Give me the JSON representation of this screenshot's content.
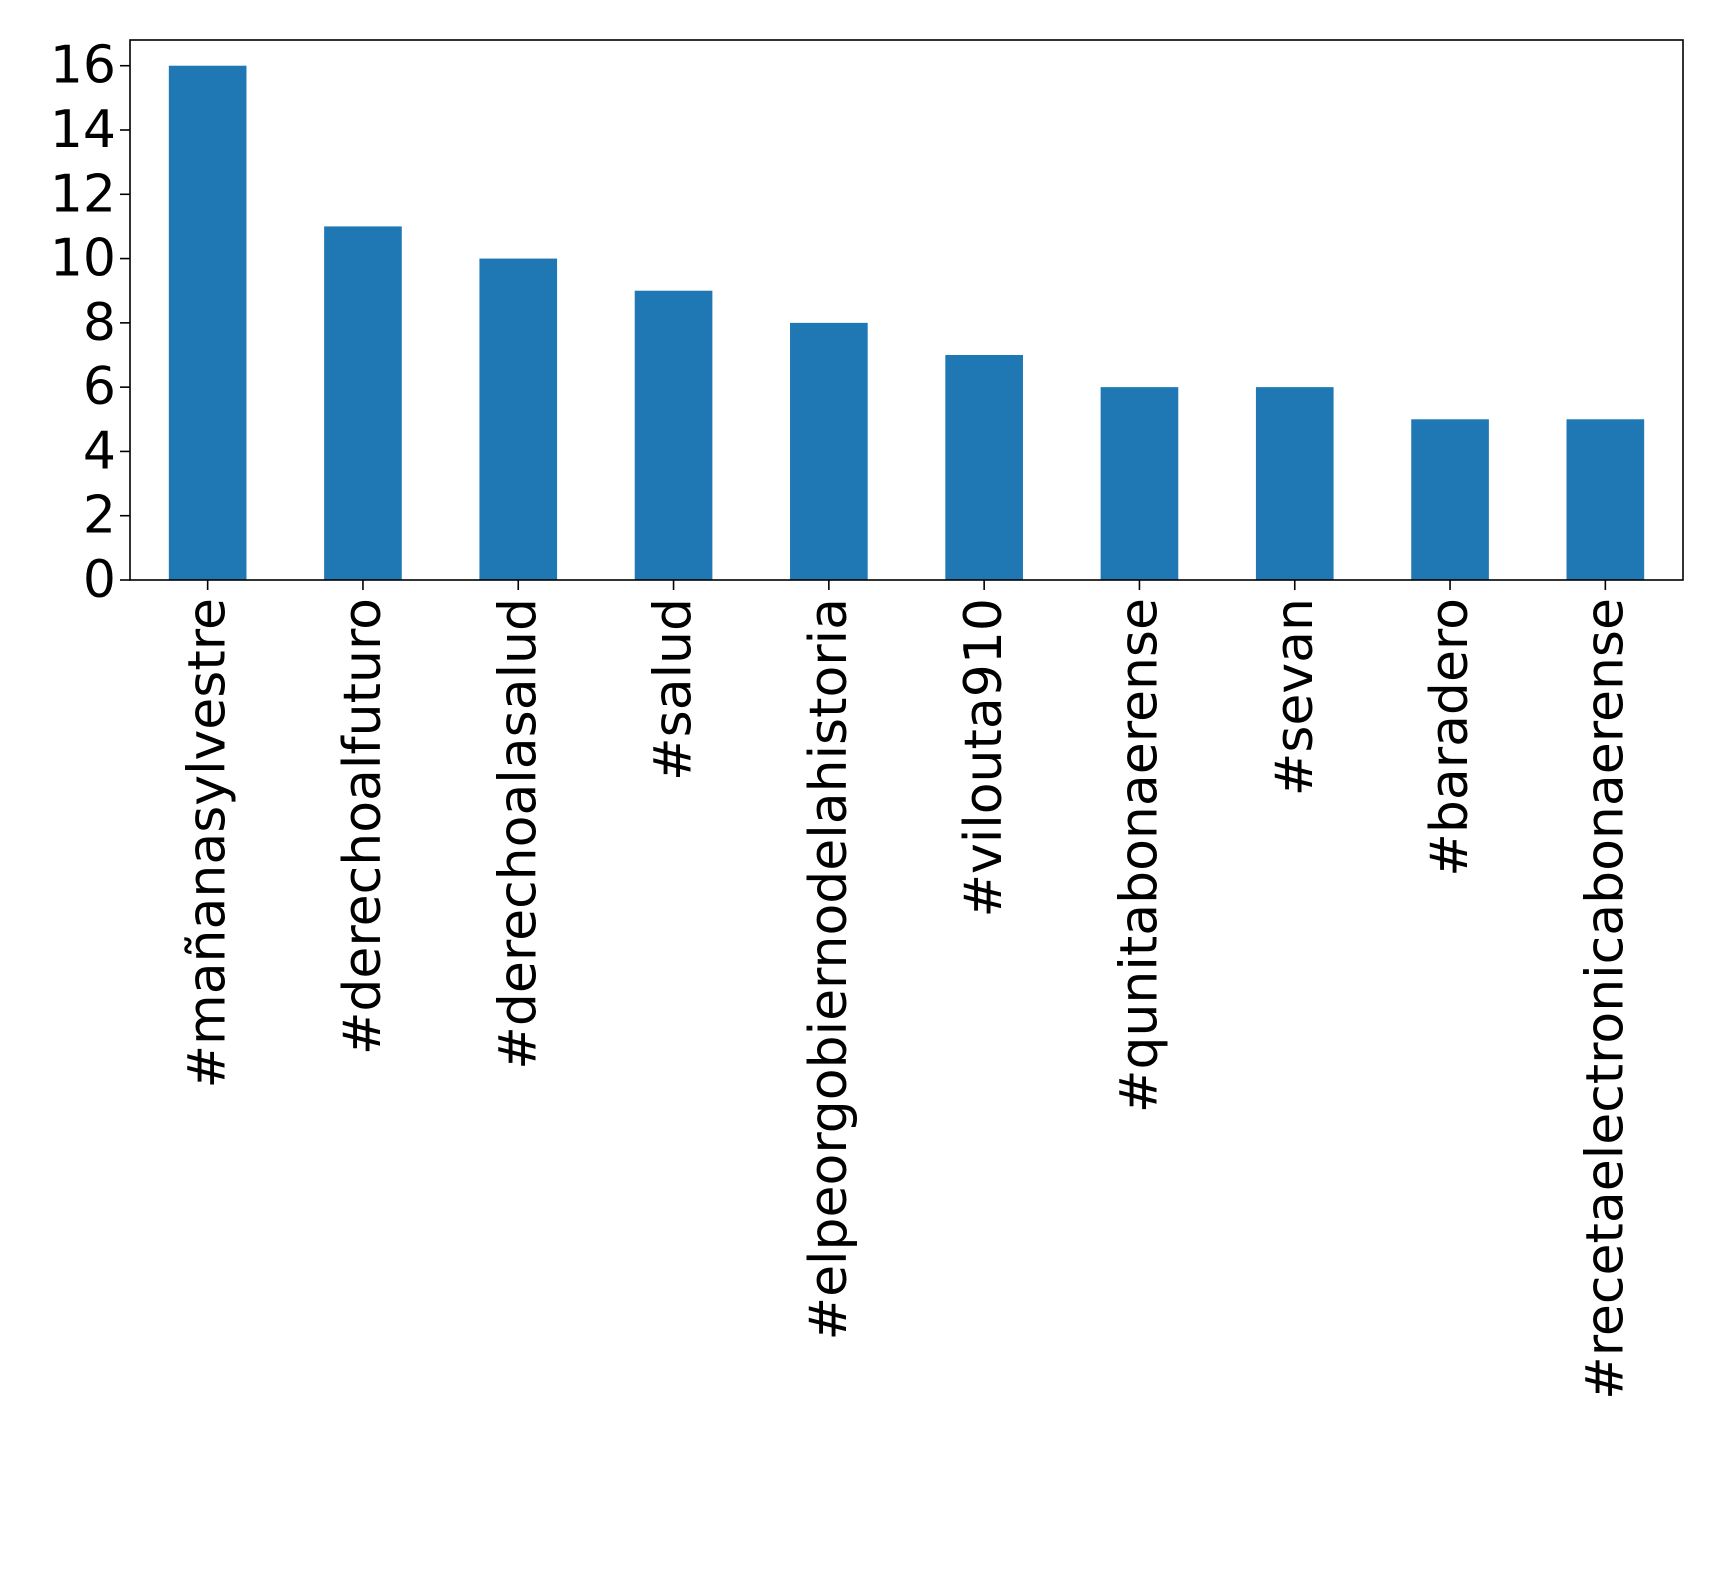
{
  "chart_data": {
    "type": "bar",
    "title": "",
    "xlabel": "",
    "ylabel": "",
    "categories": [
      "#mañanasylvestre",
      "#derechoalfuturo",
      "#derechoalasalud",
      "#salud",
      "#elpeorgobiernodelahistoria",
      "#vilouta910",
      "#qunitabonaerense",
      "#sevan",
      "#baradero",
      "#recetaelectronicabonaerense"
    ],
    "values": [
      16,
      11,
      10,
      9,
      8,
      7,
      6,
      6,
      5,
      5
    ],
    "ylim": [
      0,
      16.8
    ],
    "yticks": [
      0,
      2,
      4,
      6,
      8,
      10,
      12,
      14,
      16
    ],
    "ytick_labels": [
      "0",
      "2",
      "4",
      "6",
      "8",
      "10",
      "12",
      "14",
      "16"
    ],
    "bar_color": "#1f77b4",
    "grid": false,
    "legend": "none"
  }
}
